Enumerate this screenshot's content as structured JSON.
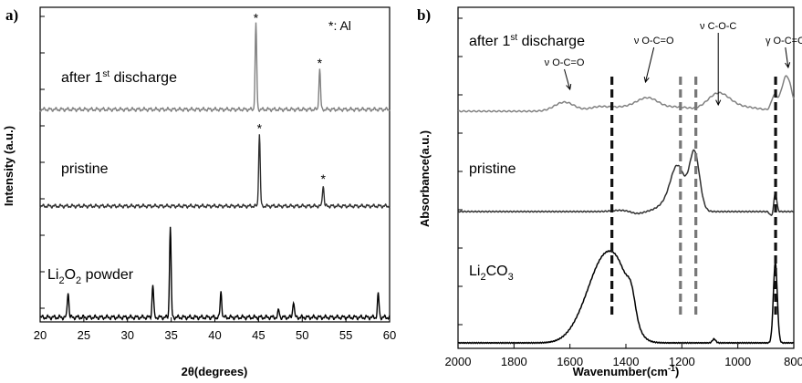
{
  "chart_data": [
    {
      "type": "line",
      "panel_label": "a)",
      "xlabel": "2θ(degrees)",
      "ylabel": "Intensity (a.u.)",
      "xlim": [
        20,
        60
      ],
      "x_ticks": [
        20,
        25,
        30,
        35,
        40,
        45,
        50,
        55,
        60
      ],
      "legend_note": "*: Al",
      "series": [
        {
          "name": "after 1st discharge",
          "label_main": "after 1",
          "label_sup": "st",
          "label_tail": " discharge",
          "color": "#808080",
          "peaks": [
            {
              "x": 44.7,
              "height": 0.85,
              "star": true
            },
            {
              "x": 52.0,
              "height": 0.4,
              "star": true
            }
          ]
        },
        {
          "name": "pristine",
          "label_main": "pristine",
          "label_sup": "",
          "label_tail": "",
          "color": "#303030",
          "peaks": [
            {
              "x": 45.1,
              "height": 0.75,
              "star": true
            },
            {
              "x": 52.4,
              "height": 0.22,
              "star": true
            }
          ]
        },
        {
          "name": "Li2O2 powder",
          "label_main": "Li",
          "label_sub1": "2",
          "label_mid": "O",
          "label_sub2": "2",
          "label_tail": " powder",
          "color": "#000000",
          "peaks": [
            {
              "x": 23.2,
              "height": 0.22
            },
            {
              "x": 32.9,
              "height": 0.28
            },
            {
              "x": 34.9,
              "height": 0.78
            },
            {
              "x": 40.7,
              "height": 0.22
            },
            {
              "x": 47.3,
              "height": 0.06
            },
            {
              "x": 49.0,
              "height": 0.14
            },
            {
              "x": 58.7,
              "height": 0.2
            }
          ]
        }
      ]
    },
    {
      "type": "line",
      "panel_label": "b)",
      "xlabel": "Wavenumber(cm",
      "xlabel_sup": "-1",
      "xlabel_end": ")",
      "ylabel": "Absorbance(a.u.)",
      "xlim": [
        2000,
        800
      ],
      "x_ticks": [
        2000,
        1800,
        1600,
        1400,
        1200,
        1000,
        800
      ],
      "vlines": [
        {
          "x": 1450,
          "color": "#111111"
        },
        {
          "x": 1205,
          "color": "#777777"
        },
        {
          "x": 1150,
          "color": "#777777"
        },
        {
          "x": 865,
          "color": "#111111"
        }
      ],
      "annotations": [
        {
          "text": "ν O-C=O",
          "x": 1620
        },
        {
          "text": "ν O-C=O",
          "x": 1300
        },
        {
          "text": "ν C-O-C",
          "x": 1070
        },
        {
          "text": "γ O-C=O",
          "x": 830
        }
      ],
      "series": [
        {
          "name": "after 1st discharge",
          "label_main": "after 1",
          "label_sup": "st",
          "label_tail": " discharge",
          "color": "#808080"
        },
        {
          "name": "pristine",
          "label_main": "pristine",
          "label_sup": "",
          "label_tail": "",
          "color": "#303030"
        },
        {
          "name": "Li2CO3",
          "label_main": "Li",
          "label_sub1": "2",
          "label_mid": "CO",
          "label_sub2": "3",
          "label_tail": "",
          "color": "#000000"
        }
      ]
    }
  ]
}
